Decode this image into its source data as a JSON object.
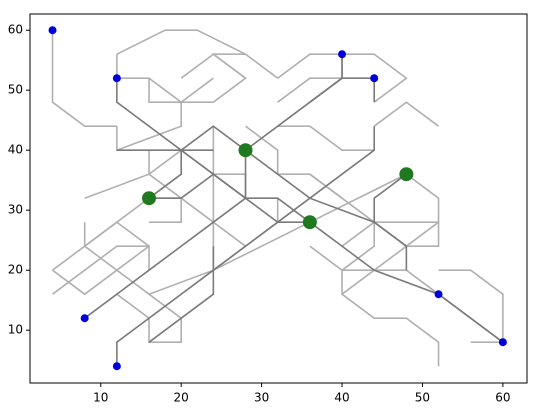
{
  "chart_data": {
    "type": "scatter",
    "xlim": [
      1.2,
      63.0
    ],
    "ylim": [
      1.2,
      62.7
    ],
    "xticks": [
      10,
      20,
      30,
      40,
      50,
      60
    ],
    "yticks": [
      10,
      20,
      30,
      40,
      50,
      60
    ],
    "lines": [
      {
        "color": "#b0b0b0",
        "segments": [
          {
            "x": [
              4,
              4,
              8,
              12
            ],
            "y": [
              60,
              48,
              44,
              44
            ]
          },
          {
            "x": [
              12,
              12,
              16,
              20,
              24,
              28,
              24,
              28
            ],
            "y": [
              56,
              52,
              52,
              48,
              48,
              52,
              56,
              56
            ]
          },
          {
            "x": [
              12,
              18,
              22,
              28,
              32
            ],
            "y": [
              56,
              60,
              60,
              56,
              52
            ]
          },
          {
            "x": [
              16,
              16,
              20,
              24
            ],
            "y": [
              52,
              48,
              48,
              52
            ]
          },
          {
            "x": [
              20,
              24,
              28
            ],
            "y": [
              52,
              56,
              52
            ]
          },
          {
            "x": [
              12,
              12,
              20,
              20
            ],
            "y": [
              44,
              40,
              44,
              48
            ]
          },
          {
            "x": [
              32,
              36,
              44,
              48,
              44
            ],
            "y": [
              52,
              56,
              56,
              52,
              48
            ]
          },
          {
            "x": [
              40,
              40,
              36,
              32
            ],
            "y": [
              56,
              52,
              52,
              48
            ]
          },
          {
            "x": [
              32,
              36,
              40,
              44
            ],
            "y": [
              44,
              44,
              40,
              40
            ]
          },
          {
            "x": [
              28,
              32,
              32,
              36,
              40
            ],
            "y": [
              44,
              40,
              36,
              36,
              32
            ]
          },
          {
            "x": [
              24,
              24,
              28,
              28
            ],
            "y": [
              44,
              36,
              36,
              32
            ]
          },
          {
            "x": [
              16,
              16,
              20,
              20,
              16
            ],
            "y": [
              40,
              36,
              32,
              28,
              28
            ]
          },
          {
            "x": [
              8,
              8,
              12,
              16,
              20,
              24,
              28
            ],
            "y": [
              28,
              24,
              28,
              32,
              32,
              28,
              24
            ]
          },
          {
            "x": [
              4,
              8,
              12,
              16,
              16
            ],
            "y": [
              20,
              16,
              20,
              24,
              20
            ]
          },
          {
            "x": [
              4,
              8,
              12,
              16
            ],
            "y": [
              16,
              20,
              24,
              24
            ]
          },
          {
            "x": [
              12,
              16,
              16,
              20,
              20
            ],
            "y": [
              16,
              12,
              8,
              8,
              12
            ]
          },
          {
            "x": [
              8,
              12,
              16,
              20
            ],
            "y": [
              24,
              20,
              16,
              12
            ]
          },
          {
            "x": [
              4,
              12,
              16
            ],
            "y": [
              20,
              28,
              24
            ]
          },
          {
            "x": [
              16,
              24,
              36,
              48
            ],
            "y": [
              16,
              20,
              28,
              36
            ]
          },
          {
            "x": [
              24,
              24,
              28,
              32,
              32
            ],
            "y": [
              28,
              20,
              24,
              28,
              32
            ]
          },
          {
            "x": [
              36,
              40,
              44,
              44,
              40,
              36
            ],
            "y": [
              36,
              32,
              28,
              24,
              20,
              24
            ]
          },
          {
            "x": [
              40,
              44,
              48,
              52
            ],
            "y": [
              24,
              28,
              28,
              28
            ]
          },
          {
            "x": [
              40,
              44,
              48,
              52,
              52
            ],
            "y": [
              20,
              20,
              24,
              24,
              28
            ]
          },
          {
            "x": [
              48,
              52,
              52,
              48
            ],
            "y": [
              36,
              32,
              28,
              24
            ]
          },
          {
            "x": [
              40,
              40,
              44,
              48,
              52,
              52
            ],
            "y": [
              20,
              16,
              12,
              12,
              8,
              4
            ]
          },
          {
            "x": [
              52,
              56,
              60,
              60,
              56
            ],
            "y": [
              20,
              20,
              16,
              8,
              8
            ]
          },
          {
            "x": [
              40,
              44,
              48,
              52,
              56,
              60
            ],
            "y": [
              16,
              20,
              20,
              16,
              12,
              8
            ]
          },
          {
            "x": [
              44,
              48,
              52
            ],
            "y": [
              44,
              48,
              44
            ]
          },
          {
            "x": [
              8,
              16,
              20,
              24,
              24
            ],
            "y": [
              32,
              36,
              40,
              36,
              28
            ]
          }
        ]
      },
      {
        "color": "#7a7a7a",
        "segments": [
          {
            "x": [
              12,
              12,
              24,
              28,
              32,
              36
            ],
            "y": [
              52,
              48,
              36,
              32,
              32,
              28
            ]
          },
          {
            "x": [
              36,
              44,
              52,
              60
            ],
            "y": [
              28,
              20,
              16,
              8
            ]
          },
          {
            "x": [
              28,
              36,
              44,
              48,
              48
            ],
            "y": [
              40,
              32,
              28,
              24,
              20
            ]
          },
          {
            "x": [
              8,
              16,
              24,
              28,
              28
            ],
            "y": [
              12,
              20,
              28,
              32,
              40
            ]
          },
          {
            "x": [
              12,
              12,
              24,
              32,
              40,
              44,
              44
            ],
            "y": [
              4,
              8,
              20,
              28,
              36,
              40,
              44
            ]
          },
          {
            "x": [
              16,
              20,
              24,
              28,
              32,
              36
            ],
            "y": [
              32,
              32,
              36,
              32,
              28,
              28
            ]
          },
          {
            "x": [
              12,
              20,
              24,
              28
            ],
            "y": [
              40,
              40,
              44,
              40
            ]
          },
          {
            "x": [
              40,
              40,
              36,
              32,
              28
            ],
            "y": [
              56,
              52,
              48,
              44,
              40
            ]
          },
          {
            "x": [
              36,
              40,
              44,
              44
            ],
            "y": [
              48,
              52,
              52,
              48
            ]
          },
          {
            "x": [
              48,
              44,
              44,
              48
            ],
            "y": [
              36,
              32,
              28,
              24
            ]
          },
          {
            "x": [
              16,
              20,
              20,
              24
            ],
            "y": [
              32,
              36,
              40,
              40
            ]
          },
          {
            "x": [
              24,
              24,
              20,
              16
            ],
            "y": [
              24,
              16,
              12,
              8
            ]
          }
        ]
      }
    ],
    "series": [
      {
        "color": "#0000dd",
        "size": 4,
        "x": [
          4,
          12,
          40,
          44,
          8,
          12,
          52,
          60
        ],
        "y": [
          60,
          52,
          56,
          52,
          12,
          4,
          16,
          8
        ]
      },
      {
        "color": "#1f7a1f",
        "size": 7,
        "x": [
          28,
          16,
          48,
          36
        ],
        "y": [
          40,
          32,
          36,
          28
        ]
      }
    ]
  }
}
